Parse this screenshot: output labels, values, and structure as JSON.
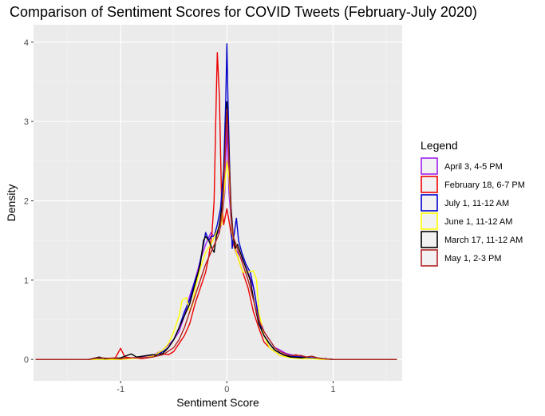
{
  "chart_data": {
    "type": "line",
    "title": "Comparison of Sentiment Scores for COVID Tweets (February-July 2020)",
    "xlabel": "Sentiment Score",
    "ylabel": "Density",
    "xlim": [
      -1.82,
      1.65
    ],
    "ylim": [
      -0.27,
      4.22
    ],
    "x_ticks": [
      {
        "value": -1,
        "label": "-1"
      },
      {
        "value": 0,
        "label": "0"
      },
      {
        "value": 1,
        "label": "1"
      }
    ],
    "y_ticks": [
      {
        "value": 0,
        "label": "0"
      },
      {
        "value": 1,
        "label": "1"
      },
      {
        "value": 2,
        "label": "2"
      },
      {
        "value": 3,
        "label": "3"
      },
      {
        "value": 4,
        "label": "4"
      }
    ],
    "grid": true,
    "background": "#ebebeb",
    "legend": {
      "title": "Legend",
      "position": "right"
    },
    "series": [
      {
        "name": "April 3, 4-5 PM",
        "color": "#a020f0",
        "points": [
          [
            -1.8,
            0
          ],
          [
            -1.3,
            0
          ],
          [
            -1.22,
            0.02
          ],
          [
            -1.15,
            0
          ],
          [
            -1.0,
            0.01
          ],
          [
            -0.9,
            0.02
          ],
          [
            -0.8,
            0.03
          ],
          [
            -0.7,
            0.05
          ],
          [
            -0.6,
            0.12
          ],
          [
            -0.5,
            0.25
          ],
          [
            -0.45,
            0.35
          ],
          [
            -0.4,
            0.55
          ],
          [
            -0.35,
            0.8
          ],
          [
            -0.3,
            1.0
          ],
          [
            -0.25,
            1.25
          ],
          [
            -0.2,
            1.45
          ],
          [
            -0.15,
            1.6
          ],
          [
            -0.12,
            1.55
          ],
          [
            -0.08,
            1.6
          ],
          [
            -0.05,
            1.7
          ],
          [
            -0.02,
            2.1
          ],
          [
            0.0,
            2.95
          ],
          [
            0.02,
            2.1
          ],
          [
            0.05,
            1.6
          ],
          [
            0.08,
            1.4
          ],
          [
            0.1,
            1.35
          ],
          [
            0.15,
            1.25
          ],
          [
            0.2,
            1.1
          ],
          [
            0.25,
            0.9
          ],
          [
            0.3,
            0.55
          ],
          [
            0.35,
            0.35
          ],
          [
            0.4,
            0.25
          ],
          [
            0.45,
            0.15
          ],
          [
            0.5,
            0.12
          ],
          [
            0.55,
            0.08
          ],
          [
            0.6,
            0.06
          ],
          [
            0.65,
            0.05
          ],
          [
            0.7,
            0.04
          ],
          [
            0.8,
            0.02
          ],
          [
            0.9,
            0.01
          ],
          [
            1.0,
            0
          ],
          [
            1.6,
            0
          ]
        ]
      },
      {
        "name": "February 18, 6-7 PM",
        "color": "#ee0000",
        "points": [
          [
            -1.8,
            0
          ],
          [
            -1.3,
            0
          ],
          [
            -1.05,
            0.02
          ],
          [
            -1.0,
            0.14
          ],
          [
            -0.96,
            0.03
          ],
          [
            -0.9,
            0.02
          ],
          [
            -0.8,
            0.01
          ],
          [
            -0.7,
            0.03
          ],
          [
            -0.65,
            0.08
          ],
          [
            -0.6,
            0.07
          ],
          [
            -0.55,
            0.06
          ],
          [
            -0.5,
            0.1
          ],
          [
            -0.45,
            0.2
          ],
          [
            -0.4,
            0.3
          ],
          [
            -0.35,
            0.45
          ],
          [
            -0.3,
            0.7
          ],
          [
            -0.25,
            0.9
          ],
          [
            -0.2,
            1.1
          ],
          [
            -0.17,
            1.3
          ],
          [
            -0.14,
            1.6
          ],
          [
            -0.12,
            2.0
          ],
          [
            -0.1,
            3.3
          ],
          [
            -0.09,
            3.87
          ],
          [
            -0.07,
            3.3
          ],
          [
            -0.05,
            2.0
          ],
          [
            -0.03,
            1.7
          ],
          [
            0.0,
            1.9
          ],
          [
            0.02,
            1.75
          ],
          [
            0.05,
            1.5
          ],
          [
            0.1,
            1.3
          ],
          [
            0.15,
            1.1
          ],
          [
            0.2,
            0.9
          ],
          [
            0.25,
            0.6
          ],
          [
            0.3,
            0.4
          ],
          [
            0.35,
            0.22
          ],
          [
            0.4,
            0.15
          ],
          [
            0.45,
            0.1
          ],
          [
            0.5,
            0.05
          ],
          [
            0.6,
            0.03
          ],
          [
            0.65,
            0.06
          ],
          [
            0.7,
            0.03
          ],
          [
            0.8,
            0.01
          ],
          [
            0.9,
            0.01
          ],
          [
            1.0,
            0
          ],
          [
            1.6,
            0
          ]
        ]
      },
      {
        "name": "July 1, 11-12 AM",
        "color": "#0000cd",
        "points": [
          [
            -1.8,
            0
          ],
          [
            -1.3,
            0
          ],
          [
            -1.2,
            0.01
          ],
          [
            -1.0,
            0
          ],
          [
            -0.9,
            0.02
          ],
          [
            -0.8,
            0.02
          ],
          [
            -0.7,
            0.04
          ],
          [
            -0.6,
            0.1
          ],
          [
            -0.55,
            0.15
          ],
          [
            -0.5,
            0.25
          ],
          [
            -0.45,
            0.4
          ],
          [
            -0.4,
            0.6
          ],
          [
            -0.35,
            0.75
          ],
          [
            -0.3,
            1.0
          ],
          [
            -0.27,
            1.1
          ],
          [
            -0.25,
            1.25
          ],
          [
            -0.22,
            1.45
          ],
          [
            -0.2,
            1.6
          ],
          [
            -0.17,
            1.5
          ],
          [
            -0.15,
            1.55
          ],
          [
            -0.12,
            1.55
          ],
          [
            -0.09,
            1.7
          ],
          [
            -0.06,
            1.9
          ],
          [
            -0.03,
            2.4
          ],
          [
            -0.01,
            3.3
          ],
          [
            0.0,
            3.98
          ],
          [
            0.01,
            3.3
          ],
          [
            0.03,
            2.2
          ],
          [
            0.05,
            1.4
          ],
          [
            0.07,
            1.6
          ],
          [
            0.09,
            1.78
          ],
          [
            0.11,
            1.5
          ],
          [
            0.14,
            1.35
          ],
          [
            0.18,
            1.2
          ],
          [
            0.22,
            1.1
          ],
          [
            0.26,
            0.85
          ],
          [
            0.3,
            0.5
          ],
          [
            0.35,
            0.3
          ],
          [
            0.4,
            0.2
          ],
          [
            0.45,
            0.12
          ],
          [
            0.5,
            0.08
          ],
          [
            0.55,
            0.05
          ],
          [
            0.6,
            0.04
          ],
          [
            0.7,
            0.03
          ],
          [
            0.8,
            0.02
          ],
          [
            0.9,
            0.01
          ],
          [
            1.0,
            0
          ],
          [
            1.6,
            0
          ]
        ]
      },
      {
        "name": "June 1, 11-12 AM",
        "color": "#ffff00",
        "points": [
          [
            -1.8,
            0
          ],
          [
            -1.3,
            0
          ],
          [
            -1.0,
            0
          ],
          [
            -0.9,
            0.01
          ],
          [
            -0.8,
            0.02
          ],
          [
            -0.7,
            0.04
          ],
          [
            -0.6,
            0.12
          ],
          [
            -0.55,
            0.2
          ],
          [
            -0.5,
            0.35
          ],
          [
            -0.45,
            0.55
          ],
          [
            -0.42,
            0.75
          ],
          [
            -0.38,
            0.78
          ],
          [
            -0.35,
            0.6
          ],
          [
            -0.32,
            0.7
          ],
          [
            -0.3,
            0.9
          ],
          [
            -0.25,
            1.15
          ],
          [
            -0.2,
            1.35
          ],
          [
            -0.15,
            1.45
          ],
          [
            -0.1,
            1.6
          ],
          [
            -0.05,
            1.7
          ],
          [
            -0.02,
            2.2
          ],
          [
            0.0,
            2.5
          ],
          [
            0.02,
            2.3
          ],
          [
            0.05,
            1.6
          ],
          [
            0.08,
            1.4
          ],
          [
            0.1,
            1.3
          ],
          [
            0.15,
            1.1
          ],
          [
            0.2,
            1.1
          ],
          [
            0.25,
            1.12
          ],
          [
            0.28,
            1.0
          ],
          [
            0.3,
            0.6
          ],
          [
            0.35,
            0.3
          ],
          [
            0.4,
            0.15
          ],
          [
            0.5,
            0.05
          ],
          [
            0.6,
            0.02
          ],
          [
            0.7,
            0.01
          ],
          [
            0.8,
            0.01
          ],
          [
            0.9,
            0
          ],
          [
            1.6,
            0
          ]
        ]
      },
      {
        "name": "March 17, 11-12 AM",
        "color": "#000000",
        "points": [
          [
            -1.8,
            0
          ],
          [
            -1.3,
            0
          ],
          [
            -1.2,
            0.03
          ],
          [
            -1.15,
            0.01
          ],
          [
            -1.0,
            0.02
          ],
          [
            -0.9,
            0.07
          ],
          [
            -0.85,
            0.03
          ],
          [
            -0.8,
            0.04
          ],
          [
            -0.7,
            0.06
          ],
          [
            -0.65,
            0.05
          ],
          [
            -0.6,
            0.08
          ],
          [
            -0.55,
            0.15
          ],
          [
            -0.5,
            0.25
          ],
          [
            -0.45,
            0.4
          ],
          [
            -0.4,
            0.55
          ],
          [
            -0.35,
            0.7
          ],
          [
            -0.3,
            0.95
          ],
          [
            -0.25,
            1.2
          ],
          [
            -0.22,
            1.5
          ],
          [
            -0.2,
            1.55
          ],
          [
            -0.17,
            1.5
          ],
          [
            -0.14,
            1.4
          ],
          [
            -0.12,
            1.35
          ],
          [
            -0.1,
            1.55
          ],
          [
            -0.07,
            1.7
          ],
          [
            -0.04,
            2.0
          ],
          [
            -0.02,
            2.6
          ],
          [
            0.0,
            3.25
          ],
          [
            0.02,
            2.6
          ],
          [
            0.04,
            1.9
          ],
          [
            0.06,
            1.55
          ],
          [
            0.08,
            1.4
          ],
          [
            0.1,
            1.45
          ],
          [
            0.14,
            1.3
          ],
          [
            0.18,
            1.15
          ],
          [
            0.22,
            1.0
          ],
          [
            0.26,
            0.7
          ],
          [
            0.3,
            0.45
          ],
          [
            0.35,
            0.3
          ],
          [
            0.4,
            0.2
          ],
          [
            0.45,
            0.12
          ],
          [
            0.5,
            0.08
          ],
          [
            0.55,
            0.05
          ],
          [
            0.6,
            0.03
          ],
          [
            0.7,
            0.02
          ],
          [
            0.8,
            0.04
          ],
          [
            0.85,
            0.02
          ],
          [
            0.9,
            0.01
          ],
          [
            1.0,
            0
          ],
          [
            1.6,
            0
          ]
        ]
      },
      {
        "name": "May 1, 2-3 PM",
        "color": "#b22222",
        "points": [
          [
            -1.8,
            0
          ],
          [
            -1.3,
            0
          ],
          [
            -1.2,
            0.02
          ],
          [
            -1.0,
            0.01
          ],
          [
            -0.9,
            0.02
          ],
          [
            -0.8,
            0.02
          ],
          [
            -0.7,
            0.03
          ],
          [
            -0.6,
            0.06
          ],
          [
            -0.5,
            0.15
          ],
          [
            -0.45,
            0.25
          ],
          [
            -0.4,
            0.4
          ],
          [
            -0.35,
            0.6
          ],
          [
            -0.3,
            0.8
          ],
          [
            -0.25,
            1.0
          ],
          [
            -0.2,
            1.2
          ],
          [
            -0.15,
            1.35
          ],
          [
            -0.1,
            1.5
          ],
          [
            -0.07,
            1.6
          ],
          [
            -0.04,
            1.9
          ],
          [
            -0.02,
            2.5
          ],
          [
            0.0,
            3.15
          ],
          [
            0.02,
            2.5
          ],
          [
            0.04,
            1.8
          ],
          [
            0.06,
            1.55
          ],
          [
            0.1,
            1.4
          ],
          [
            0.15,
            1.2
          ],
          [
            0.2,
            1.0
          ],
          [
            0.25,
            0.75
          ],
          [
            0.3,
            0.5
          ],
          [
            0.35,
            0.35
          ],
          [
            0.4,
            0.25
          ],
          [
            0.45,
            0.15
          ],
          [
            0.5,
            0.1
          ],
          [
            0.55,
            0.07
          ],
          [
            0.6,
            0.05
          ],
          [
            0.7,
            0.05
          ],
          [
            0.75,
            0.03
          ],
          [
            0.8,
            0.04
          ],
          [
            0.85,
            0.02
          ],
          [
            0.9,
            0.01
          ],
          [
            1.0,
            0
          ],
          [
            1.6,
            0
          ]
        ]
      }
    ]
  }
}
